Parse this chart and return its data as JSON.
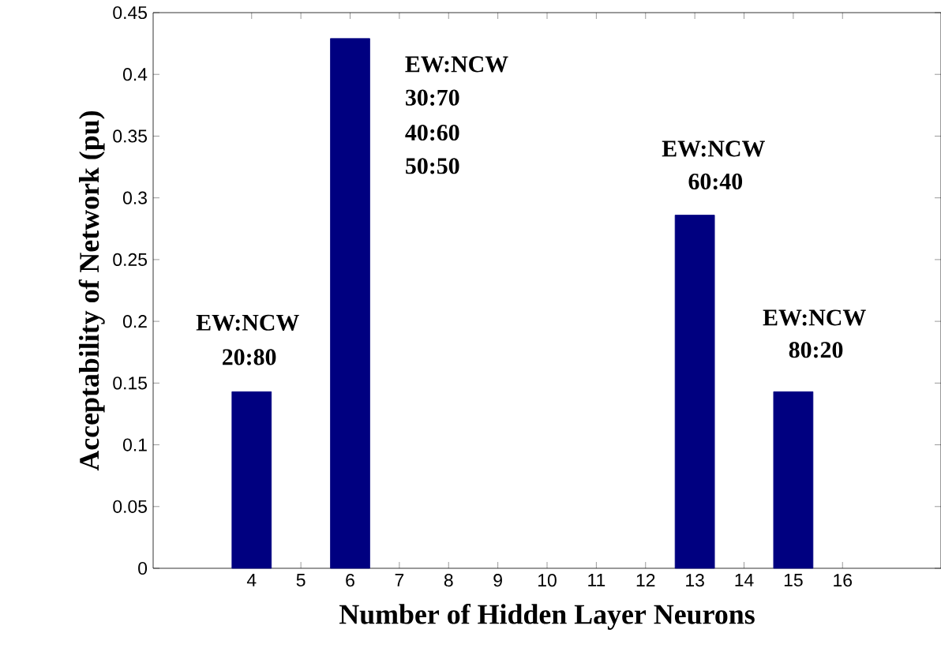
{
  "chart_data": {
    "type": "bar",
    "xlabel": "Number of Hidden Layer Neurons",
    "ylabel": "Acceptability of Network  (pu)",
    "categories": [
      null,
      null,
      "4",
      "5",
      "6",
      "7",
      "8",
      "9",
      "10",
      "11",
      "12",
      "13",
      "14",
      "15",
      "16",
      null,
      null
    ],
    "values": [
      null,
      null,
      0.143,
      null,
      0.429,
      null,
      null,
      null,
      null,
      null,
      null,
      0.286,
      null,
      0.143,
      null,
      null,
      null
    ],
    "color": "#000080",
    "ylim": [
      0,
      0.45
    ],
    "yticks": [
      0,
      0.05,
      0.1,
      0.15,
      0.2,
      0.25,
      0.3,
      0.35,
      0.4,
      0.45
    ],
    "annotations": [
      "EW:NCW",
      "20:80",
      "EW:NCW",
      "30:70",
      "40:60",
      "50:50",
      "EW:NCW",
      "60:40",
      "EW:NCW",
      "80:20"
    ]
  }
}
